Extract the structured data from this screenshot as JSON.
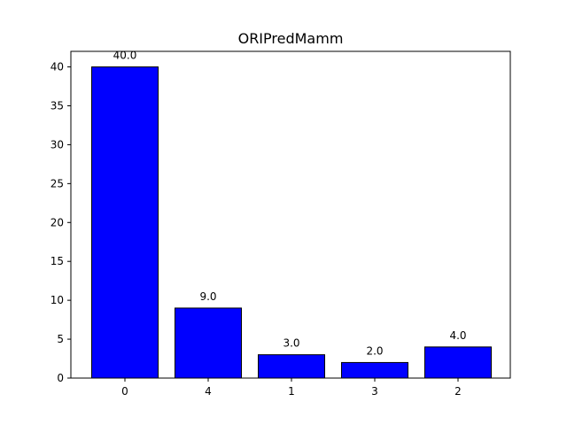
{
  "chart_data": {
    "type": "bar",
    "title": "ORIPredMamm",
    "xlabel": "",
    "ylabel": "",
    "categories": [
      "0",
      "4",
      "1",
      "3",
      "2"
    ],
    "values": [
      40.0,
      9.0,
      3.0,
      2.0,
      4.0
    ],
    "data_labels": [
      "40.0",
      "9.0",
      "3.0",
      "2.0",
      "4.0"
    ],
    "ylim": [
      0,
      42
    ],
    "yticks": [
      0,
      5,
      10,
      15,
      20,
      25,
      30,
      35,
      40
    ],
    "bar_color": "#0000ff",
    "edge_color": "#000000",
    "grid": false,
    "legend": "none"
  }
}
